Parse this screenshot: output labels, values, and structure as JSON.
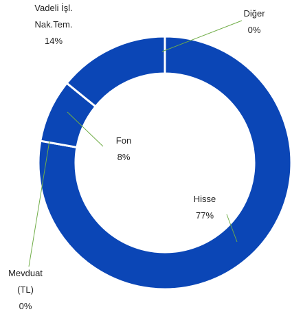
{
  "chart_data": {
    "type": "donut",
    "categories": [
      "Hisse",
      "Mevduat (TL)",
      "Fon",
      "Vadeli İşl. Nak.Tem.",
      "Diğer"
    ],
    "values": [
      77,
      0,
      8,
      14,
      0
    ],
    "value_labels": [
      "77%",
      "0%",
      "8%",
      "14%",
      "0%"
    ],
    "color": "#0b46b6",
    "leader_color": "#70ad47"
  }
}
